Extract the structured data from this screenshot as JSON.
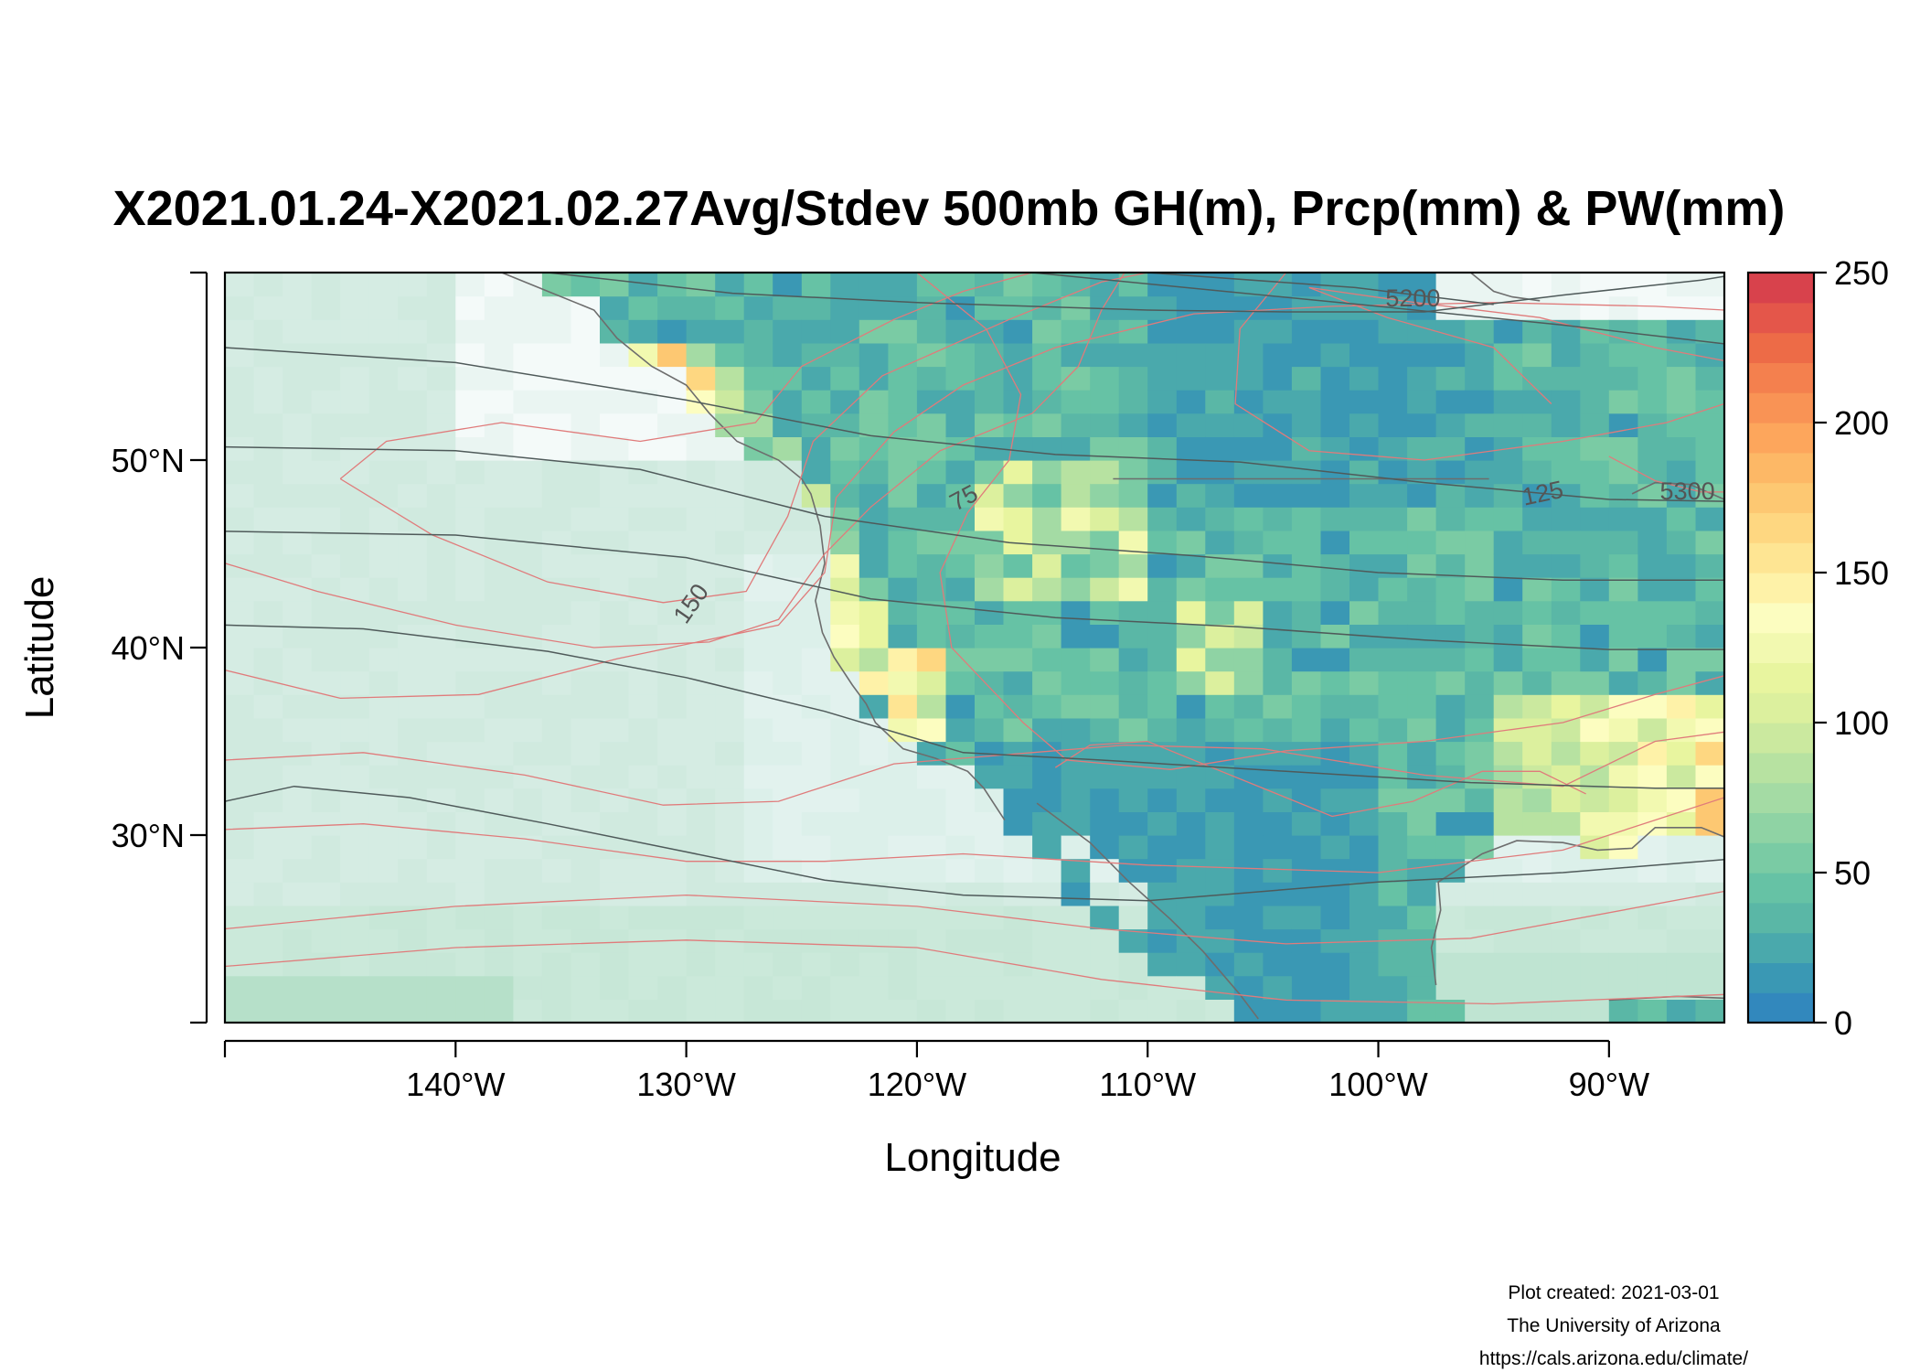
{
  "title": "X2021.01.24-X2021.02.27Avg/Stdev 500mb GH(m), Prcp(mm) & PW(mm)",
  "x_axis": {
    "label": "Longitude",
    "range": [
      -150,
      -85
    ],
    "ticks": [
      {
        "value": -150,
        "label": ""
      },
      {
        "value": -140,
        "label": "140°W"
      },
      {
        "value": -130,
        "label": "130°W"
      },
      {
        "value": -120,
        "label": "120°W"
      },
      {
        "value": -110,
        "label": "110°W"
      },
      {
        "value": -100,
        "label": "100°W"
      },
      {
        "value": -90,
        "label": "90°W"
      }
    ]
  },
  "y_axis": {
    "label": "Latitude",
    "range": [
      20,
      60
    ],
    "ticks": [
      {
        "value": 30,
        "label": "30°N"
      },
      {
        "value": 40,
        "label": "40°N"
      },
      {
        "value": 50,
        "label": "50°N"
      }
    ]
  },
  "colorbar": {
    "range": [
      0,
      250
    ],
    "ticks": [
      {
        "value": 0,
        "label": "0"
      },
      {
        "value": 50,
        "label": "50"
      },
      {
        "value": 100,
        "label": "100"
      },
      {
        "value": 150,
        "label": "150"
      },
      {
        "value": 200,
        "label": "200"
      },
      {
        "value": 250,
        "label": "250"
      }
    ],
    "colors": [
      "#3288bd",
      "#3a98b4",
      "#4aa9ac",
      "#5ab7a6",
      "#66c2a5",
      "#7acba4",
      "#8fd3a4",
      "#a4dba4",
      "#b7e2a1",
      "#cbe99f",
      "#dcf09e",
      "#e8f59f",
      "#f2f9b0",
      "#fcfdc0",
      "#fef2a8",
      "#fee593",
      "#fed781",
      "#fdc872",
      "#fdb866",
      "#fda65c",
      "#f99355",
      "#f4804e",
      "#ed6b47",
      "#e4564a",
      "#d8424c"
    ]
  },
  "contour_labels": [
    {
      "text": "5200",
      "lon": -98.5,
      "lat": 58.2,
      "angle": 0,
      "color": "#555555"
    },
    {
      "text": "5300",
      "lon": -86.6,
      "lat": 47.9,
      "angle": 0,
      "color": "#555555"
    },
    {
      "text": "75",
      "lon": -117.8,
      "lat": 47.6,
      "angle": -28,
      "color": "#555555"
    },
    {
      "text": "125",
      "lon": -92.8,
      "lat": 47.8,
      "angle": -12,
      "color": "#555555"
    },
    {
      "text": "150",
      "lon": -129.5,
      "lat": 42.1,
      "angle": -55,
      "color": "#555555"
    }
  ],
  "chart_data": {
    "type": "heatmap",
    "variable": "Prcp(mm)",
    "value_range": [
      0,
      250
    ],
    "lon_range": [
      -150,
      -85
    ],
    "lat_range": [
      20,
      60
    ],
    "contours": {
      "geopotential_height_m": [
        5200,
        5300
      ],
      "precipitable_water_mm": [
        75,
        125,
        150
      ]
    }
  },
  "footer": {
    "line1": "Plot created: 2021-03-01",
    "line2": "The University of Arizona",
    "line3": "https://cals.arizona.edu/climate/"
  }
}
